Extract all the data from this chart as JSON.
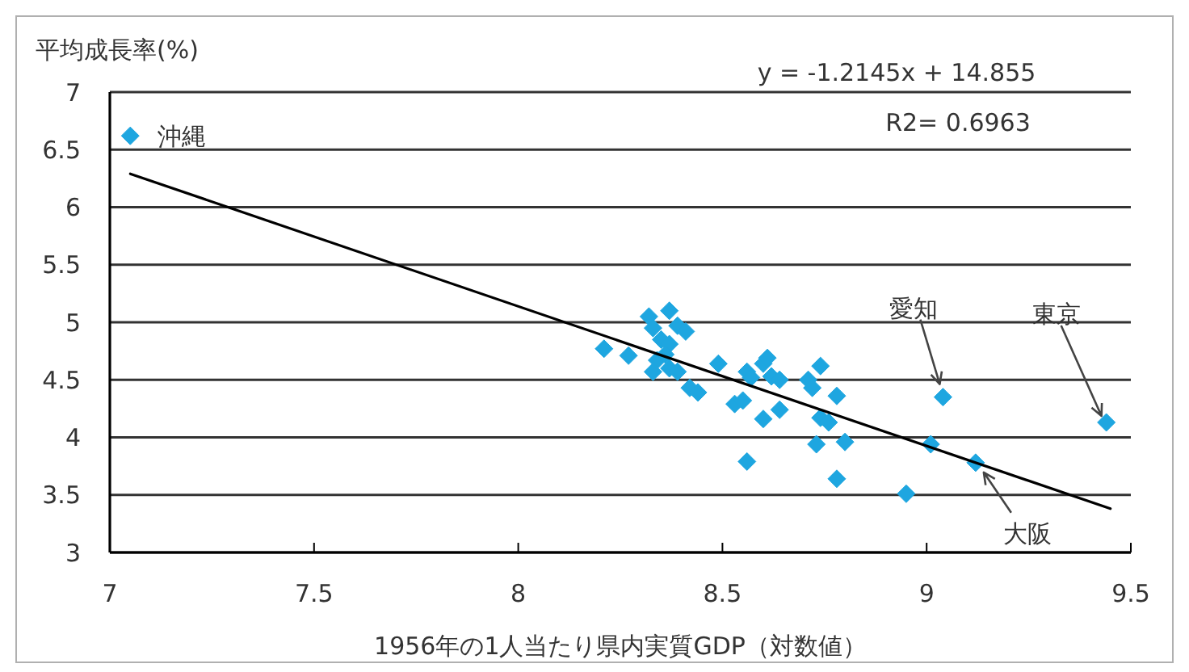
{
  "chart_data": {
    "type": "scatter",
    "ylabel": "平均成長率(%)",
    "xlabel": "1956年の1人当たり県内実質GDP（対数値）",
    "xlim": [
      7,
      9.5
    ],
    "xticks": [
      7,
      7.5,
      8,
      8.5,
      9,
      9.5
    ],
    "ylim": [
      3,
      7
    ],
    "yticks": [
      3,
      3.5,
      4,
      4.5,
      5,
      5.5,
      6,
      6.5,
      7
    ],
    "grid": "y",
    "marker": "diamond",
    "series": [
      {
        "color": "#1ea6e0",
        "x": [
          7.05,
          8.21,
          8.27,
          8.32,
          8.37,
          8.33,
          8.39,
          8.41,
          8.35,
          8.37,
          8.34,
          8.37,
          8.39,
          8.33,
          8.42,
          8.44,
          8.49,
          8.53,
          8.55,
          8.56,
          8.6,
          8.61,
          8.62,
          8.64,
          8.6,
          8.64,
          8.56,
          8.71,
          8.74,
          8.72,
          8.78,
          8.74,
          8.76,
          8.73,
          8.8,
          8.78,
          9.04,
          9.44,
          9.01,
          9.12,
          8.95,
          8.36,
          8.57
        ],
        "values": [
          6.62,
          4.77,
          4.71,
          5.05,
          5.1,
          4.95,
          4.97,
          4.92,
          4.85,
          4.81,
          4.67,
          4.6,
          4.57,
          4.57,
          4.43,
          4.39,
          4.64,
          4.29,
          4.32,
          4.57,
          4.64,
          4.69,
          4.53,
          4.5,
          4.16,
          4.24,
          3.79,
          4.5,
          4.62,
          4.43,
          4.36,
          4.17,
          4.13,
          3.94,
          3.96,
          3.64,
          4.35,
          4.13,
          3.94,
          3.78,
          3.51,
          4.72,
          4.52
        ]
      },
      {
        "type": "line",
        "color": "#000000",
        "marker": "none",
        "x": [
          7.05,
          9.45
        ],
        "values": [
          6.29,
          3.38
        ]
      }
    ],
    "annotations": [
      "y = -1.2145x + 14.855",
      "R2= 0.6963",
      {
        "text": "沖縄",
        "x": 7.05,
        "y": 6.62
      },
      {
        "text": "愛知",
        "x": 9.04,
        "y": 4.35
      },
      {
        "text": "東京",
        "x": 9.44,
        "y": 4.13
      },
      {
        "text": "大阪",
        "x": 9.12,
        "y": 3.78
      }
    ]
  }
}
